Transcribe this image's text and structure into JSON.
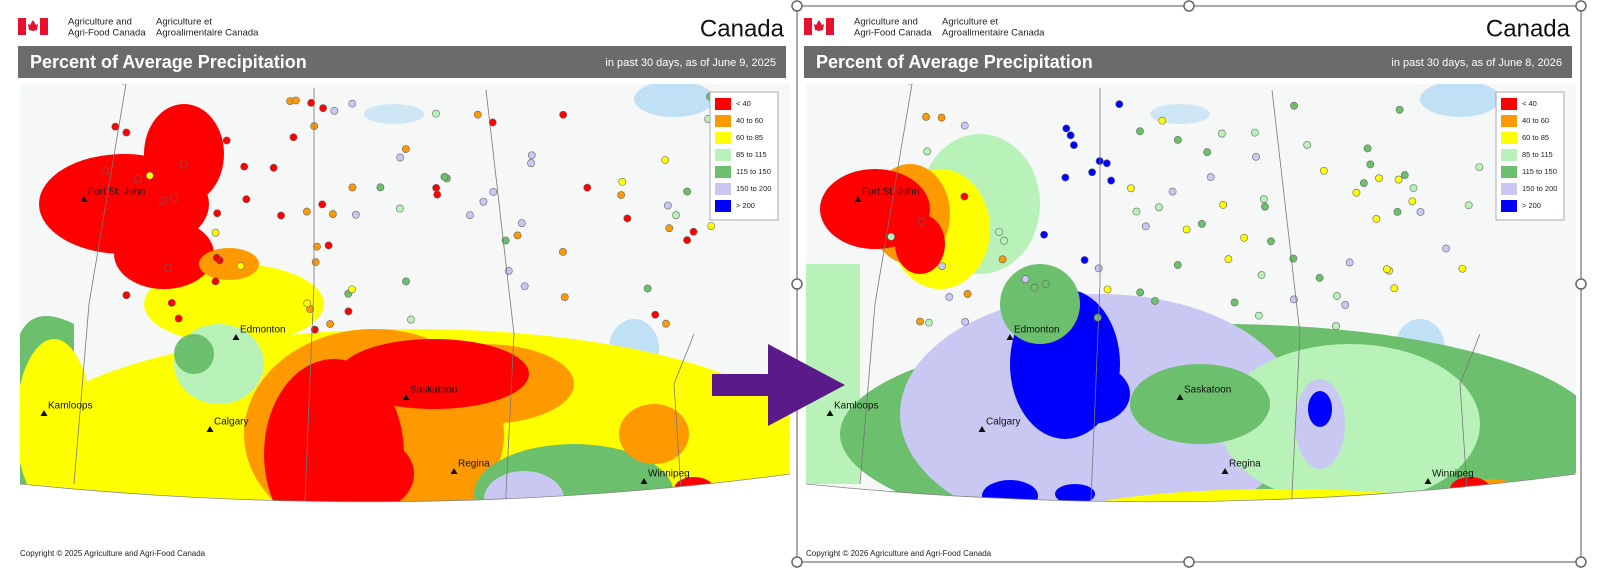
{
  "panels": [
    {
      "dept_en": [
        "Agriculture and",
        "Agri-Food Canada"
      ],
      "dept_fr": [
        "Agriculture et",
        "Agroalimentaire Canada"
      ],
      "wordmark": "Canada",
      "title": "Percent of Average Precipitation",
      "subtitle": "in past 30 days, as of June 9, 2025",
      "legend": [
        {
          "label": "< 40",
          "color": "#ff0000"
        },
        {
          "label": "40 to 60",
          "color": "#ff9900"
        },
        {
          "label": "60 to 85",
          "color": "#ffff00"
        },
        {
          "label": "85 to 115",
          "color": "#b9f2b9"
        },
        {
          "label": "115 to 150",
          "color": "#6cbf6c"
        },
        {
          "label": "150 to 200",
          "color": "#c8c8f2"
        },
        {
          "label": "> 200",
          "color": "#0000ff"
        }
      ],
      "cities": [
        "Fort St. John",
        "Edmonton",
        "Kamloops",
        "Calgary",
        "Saskatoon",
        "Regina",
        "Winnipeg"
      ],
      "copyright": "Copyright © 2025 Agriculture and Agri-Food Canada"
    },
    {
      "dept_en": [
        "Agriculture and",
        "Agri-Food Canada"
      ],
      "dept_fr": [
        "Agriculture et",
        "Agroalimentaire Canada"
      ],
      "wordmark": "Canada",
      "title": "Percent of Average Precipitation",
      "subtitle": "in past 30 days, as of June 8, 2026",
      "legend": [
        {
          "label": "< 40",
          "color": "#ff0000"
        },
        {
          "label": "40 to 60",
          "color": "#ff9900"
        },
        {
          "label": "60 to 85",
          "color": "#ffff00"
        },
        {
          "label": "85 to 115",
          "color": "#b9f2b9"
        },
        {
          "label": "115 to 150",
          "color": "#6cbf6c"
        },
        {
          "label": "150 to 200",
          "color": "#c8c8f2"
        },
        {
          "label": "> 200",
          "color": "#0000ff"
        }
      ],
      "cities": [
        "Fort St. John",
        "Edmonton",
        "Kamloops",
        "Calgary",
        "Saskatoon",
        "Regina",
        "Winnipeg"
      ],
      "copyright": "Copyright © 2026 Agriculture and Agri-Food Canada"
    }
  ]
}
